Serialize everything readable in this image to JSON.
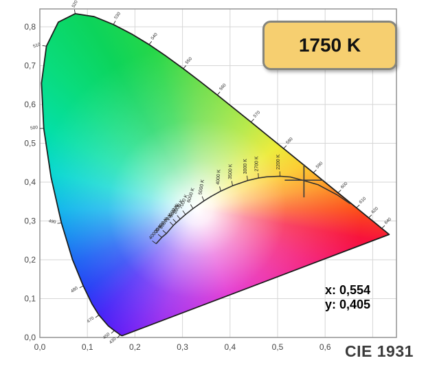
{
  "title_badge": {
    "label": "1750 K",
    "fill": "#f6cf70",
    "border": "#85857d"
  },
  "readout": {
    "x_label": "x: 0,554",
    "y_label": "y: 0,405"
  },
  "footer": {
    "label": "CIE 1931"
  },
  "colors": {
    "badge_fill": "#f6cf70",
    "badge_border": "#85857d",
    "grid": "#d6d6d6",
    "plot_border": "#8c8c8c",
    "locus_outline": "#1c1c1c",
    "planckian_stroke": "#2f2f2f",
    "marker": "#3c3c3c",
    "small_label": "#333333",
    "footer_text": "#3a3a3a"
  },
  "chart_data": {
    "type": "area",
    "subtype": "CIE 1931 xy chromaticity diagram with Planckian locus",
    "title": "CIE 1931",
    "legend": "none",
    "grid": true,
    "x_axis": {
      "label": "x",
      "range": [
        0,
        0.75
      ],
      "tick_labels": [
        "0,0",
        "0,1",
        "0,2",
        "0,3",
        "0,4",
        "0,5",
        "0,6"
      ],
      "tick_values": [
        0,
        0.1,
        0.2,
        0.3,
        0.4,
        0.5,
        0.6
      ],
      "grid_values": [
        0,
        0.1,
        0.2,
        0.3,
        0.4,
        0.5,
        0.6,
        0.7
      ]
    },
    "y_axis": {
      "label": "y",
      "range": [
        0,
        0.846
      ],
      "tick_labels": [
        "0,0",
        "0,1",
        "0,2",
        "0,3",
        "0,4",
        "0,5",
        "0,6",
        "0,7",
        "0,8"
      ],
      "tick_values": [
        0,
        0.1,
        0.2,
        0.3,
        0.4,
        0.5,
        0.6,
        0.7,
        0.8
      ],
      "grid_values": [
        0,
        0.1,
        0.2,
        0.3,
        0.4,
        0.5,
        0.6,
        0.7,
        0.8
      ]
    },
    "selected_point": {
      "cct_label": "1750 K",
      "cct_K": 1750,
      "x": 0.554,
      "y": 0.405
    },
    "spectral_locus": [
      [
        380,
        0.1741,
        0.005
      ],
      [
        410,
        0.1726,
        0.0048
      ],
      [
        420,
        0.1714,
        0.0051
      ],
      [
        430,
        0.1689,
        0.0069
      ],
      [
        440,
        0.1644,
        0.0109
      ],
      [
        450,
        0.1566,
        0.0177
      ],
      [
        460,
        0.144,
        0.0297
      ],
      [
        470,
        0.1241,
        0.0578
      ],
      [
        475,
        0.1096,
        0.0868
      ],
      [
        480,
        0.0913,
        0.1327
      ],
      [
        485,
        0.0687,
        0.2007
      ],
      [
        490,
        0.0454,
        0.295
      ],
      [
        495,
        0.0235,
        0.4127
      ],
      [
        500,
        0.0082,
        0.5384
      ],
      [
        505,
        0.0034,
        0.6548
      ],
      [
        510,
        0.0139,
        0.7502
      ],
      [
        515,
        0.0389,
        0.812
      ],
      [
        520,
        0.0743,
        0.8338
      ],
      [
        525,
        0.1142,
        0.8262
      ],
      [
        530,
        0.1547,
        0.8059
      ],
      [
        535,
        0.1929,
        0.7816
      ],
      [
        540,
        0.2296,
        0.7543
      ],
      [
        545,
        0.2658,
        0.7243
      ],
      [
        550,
        0.3016,
        0.6923
      ],
      [
        555,
        0.3373,
        0.6589
      ],
      [
        560,
        0.3731,
        0.6245
      ],
      [
        570,
        0.4441,
        0.5547
      ],
      [
        580,
        0.5125,
        0.4866
      ],
      [
        590,
        0.5752,
        0.4242
      ],
      [
        600,
        0.627,
        0.3725
      ],
      [
        610,
        0.6658,
        0.334
      ],
      [
        620,
        0.6915,
        0.3083
      ],
      [
        630,
        0.7079,
        0.292
      ],
      [
        640,
        0.719,
        0.2809
      ],
      [
        650,
        0.726,
        0.274
      ],
      [
        680,
        0.7334,
        0.2666
      ],
      [
        700,
        0.7347,
        0.2653
      ]
    ],
    "wavelength_labels": [
      {
        "nm": "520",
        "x": 0.0743,
        "y": 0.8338,
        "tickDir": 100,
        "labelDir": 62,
        "anchor": "start"
      },
      {
        "nm": "530",
        "x": 0.1547,
        "y": 0.8059,
        "tickDir": 60,
        "labelDir": 55,
        "anchor": "start"
      },
      {
        "nm": "540",
        "x": 0.2296,
        "y": 0.7543,
        "tickDir": 50,
        "labelDir": 50,
        "anchor": "start"
      },
      {
        "nm": "550",
        "x": 0.3016,
        "y": 0.6923,
        "tickDir": 48,
        "labelDir": 48,
        "anchor": "start"
      },
      {
        "nm": "560",
        "x": 0.3731,
        "y": 0.6245,
        "tickDir": 48,
        "labelDir": 48,
        "anchor": "start"
      },
      {
        "nm": "570",
        "x": 0.4441,
        "y": 0.5547,
        "tickDir": 46,
        "labelDir": 46,
        "anchor": "start"
      },
      {
        "nm": "580",
        "x": 0.5125,
        "y": 0.4866,
        "tickDir": 45,
        "labelDir": 45,
        "anchor": "start"
      },
      {
        "nm": "590",
        "x": 0.5752,
        "y": 0.4242,
        "tickDir": 44,
        "labelDir": 44,
        "anchor": "start"
      },
      {
        "nm": "600",
        "x": 0.627,
        "y": 0.3725,
        "tickDir": 43,
        "labelDir": 43,
        "anchor": "start"
      },
      {
        "nm": "610",
        "x": 0.6658,
        "y": 0.334,
        "tickDir": 43,
        "labelDir": 43,
        "anchor": "start"
      },
      {
        "nm": "620",
        "x": 0.6915,
        "y": 0.3083,
        "tickDir": 43,
        "labelDir": 43,
        "anchor": "start"
      },
      {
        "nm": "640",
        "x": 0.719,
        "y": 0.2809,
        "tickDir": 43,
        "labelDir": 43,
        "anchor": "start"
      },
      {
        "nm": "510",
        "x": 0.0139,
        "y": 0.7502,
        "tickDir": 172,
        "labelDir": 20,
        "anchor": "end"
      },
      {
        "nm": "500",
        "x": 0.0082,
        "y": 0.5384,
        "tickDir": 181,
        "labelDir": 8,
        "anchor": "end"
      },
      {
        "nm": "490",
        "x": 0.0454,
        "y": 0.295,
        "tickDir": 187,
        "labelDir": -12,
        "anchor": "end"
      },
      {
        "nm": "480",
        "x": 0.0913,
        "y": 0.1327,
        "tickDir": 207,
        "labelDir": 35,
        "anchor": "end"
      },
      {
        "nm": "470",
        "x": 0.1241,
        "y": 0.0578,
        "tickDir": 217,
        "labelDir": 38,
        "anchor": "end"
      },
      {
        "nm": "450",
        "x": 0.1566,
        "y": 0.0177,
        "tickDir": 223,
        "labelDir": 40,
        "anchor": "end"
      },
      {
        "nm": "430",
        "x": 0.1689,
        "y": 0.0069,
        "tickDir": 228,
        "labelDir": 42,
        "anchor": "end"
      }
    ],
    "planckian_locus": [
      [
        1000,
        0.6528,
        0.3444
      ],
      [
        1200,
        0.625,
        0.3675
      ],
      [
        1500,
        0.5857,
        0.3931
      ],
      [
        1750,
        0.5541,
        0.4045
      ],
      [
        2000,
        0.5267,
        0.4133
      ],
      [
        2200,
        0.505,
        0.4152
      ],
      [
        2500,
        0.477,
        0.4137
      ],
      [
        2700,
        0.4599,
        0.4106
      ],
      [
        3000,
        0.4369,
        0.4041
      ],
      [
        3500,
        0.4053,
        0.3907
      ],
      [
        4000,
        0.3805,
        0.3768
      ],
      [
        4500,
        0.3608,
        0.3636
      ],
      [
        5000,
        0.3451,
        0.3516
      ],
      [
        6000,
        0.3221,
        0.3318
      ],
      [
        7000,
        0.3064,
        0.3166
      ],
      [
        8000,
        0.2952,
        0.3048
      ],
      [
        9000,
        0.2869,
        0.2956
      ],
      [
        10000,
        0.2807,
        0.2884
      ],
      [
        15000,
        0.2661,
        0.2675
      ],
      [
        20000,
        0.2565,
        0.2577
      ],
      [
        40000,
        0.2445,
        0.2413
      ]
    ],
    "cct_labels": [
      {
        "label": "2200 K",
        "x": 0.505,
        "y": 0.4152,
        "tickDir": 92,
        "labelDir": 90
      },
      {
        "label": "2700 K",
        "x": 0.4599,
        "y": 0.4106,
        "tickDir": 94,
        "labelDir": 90
      },
      {
        "label": "3000 K",
        "x": 0.4369,
        "y": 0.4041,
        "tickDir": 97,
        "labelDir": 90
      },
      {
        "label": "3500 K",
        "x": 0.4053,
        "y": 0.3907,
        "tickDir": 100,
        "labelDir": 88
      },
      {
        "label": "4000 K",
        "x": 0.3805,
        "y": 0.3768,
        "tickDir": 104,
        "labelDir": 86
      },
      {
        "label": "5000 K",
        "x": 0.3451,
        "y": 0.3516,
        "tickDir": 112,
        "labelDir": 80
      },
      {
        "label": "6000 K",
        "x": 0.3221,
        "y": 0.3318,
        "tickDir": 120,
        "labelDir": 72
      },
      {
        "label": "7000 K",
        "x": 0.3064,
        "y": 0.3166,
        "tickDir": 126,
        "labelDir": 66
      },
      {
        "label": "8000 K",
        "x": 0.2952,
        "y": 0.3048,
        "tickDir": 130,
        "labelDir": 62
      },
      {
        "label": "9000 K",
        "x": 0.2869,
        "y": 0.2956,
        "tickDir": 133,
        "labelDir": 60
      },
      {
        "label": "10000 K",
        "x": 0.2807,
        "y": 0.2884,
        "tickDir": 135,
        "labelDir": 58
      },
      {
        "label": "15000 K",
        "x": 0.2661,
        "y": 0.2675,
        "tickDir": 139,
        "labelDir": 54
      },
      {
        "label": "20000 K",
        "x": 0.2565,
        "y": 0.2577,
        "tickDir": 141,
        "labelDir": 52
      },
      {
        "label": "40000 K",
        "x": 0.2445,
        "y": 0.2413,
        "tickDir": 143,
        "labelDir": 50
      }
    ]
  }
}
